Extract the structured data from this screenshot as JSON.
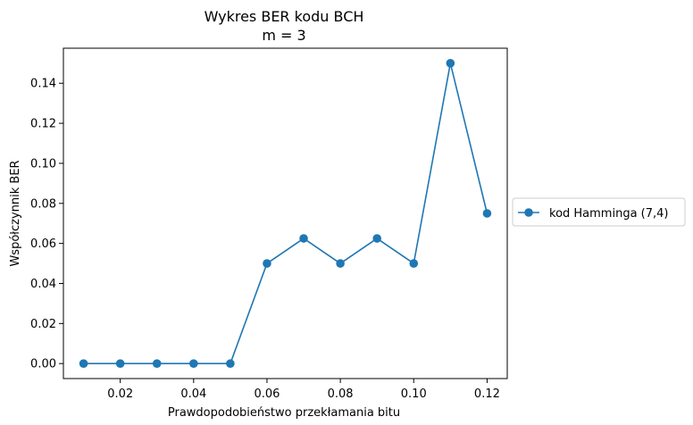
{
  "chart_data": {
    "type": "line",
    "title_line1": "Wykres BER kodu BCH",
    "title_line2": "m = 3",
    "xlabel": "Prawdopodobieństwo przekłamania bitu",
    "ylabel": "Współczynnik BER",
    "xlim": [
      0.0045,
      0.1255
    ],
    "ylim": [
      -0.0075,
      0.1575
    ],
    "xticks": [
      {
        "value": 0.02,
        "label": "0.02"
      },
      {
        "value": 0.04,
        "label": "0.04"
      },
      {
        "value": 0.06,
        "label": "0.06"
      },
      {
        "value": 0.08,
        "label": "0.08"
      },
      {
        "value": 0.1,
        "label": "0.10"
      },
      {
        "value": 0.12,
        "label": "0.12"
      }
    ],
    "yticks": [
      {
        "value": 0.0,
        "label": "0.00"
      },
      {
        "value": 0.02,
        "label": "0.02"
      },
      {
        "value": 0.04,
        "label": "0.04"
      },
      {
        "value": 0.06,
        "label": "0.06"
      },
      {
        "value": 0.08,
        "label": "0.08"
      },
      {
        "value": 0.1,
        "label": "0.10"
      },
      {
        "value": 0.12,
        "label": "0.12"
      },
      {
        "value": 0.14,
        "label": "0.14"
      }
    ],
    "grid": false,
    "legend_position": "outside-right",
    "series": [
      {
        "name": "kod Hamminga (7,4)",
        "color": "#1f77b4",
        "marker": "circle",
        "x": [
          0.01,
          0.02,
          0.03,
          0.04,
          0.05,
          0.06,
          0.07,
          0.08,
          0.09,
          0.1,
          0.11,
          0.12
        ],
        "y": [
          0.0,
          0.0,
          0.0,
          0.0,
          0.0,
          0.05,
          0.0625,
          0.05,
          0.0625,
          0.05,
          0.15,
          0.075
        ]
      }
    ]
  }
}
